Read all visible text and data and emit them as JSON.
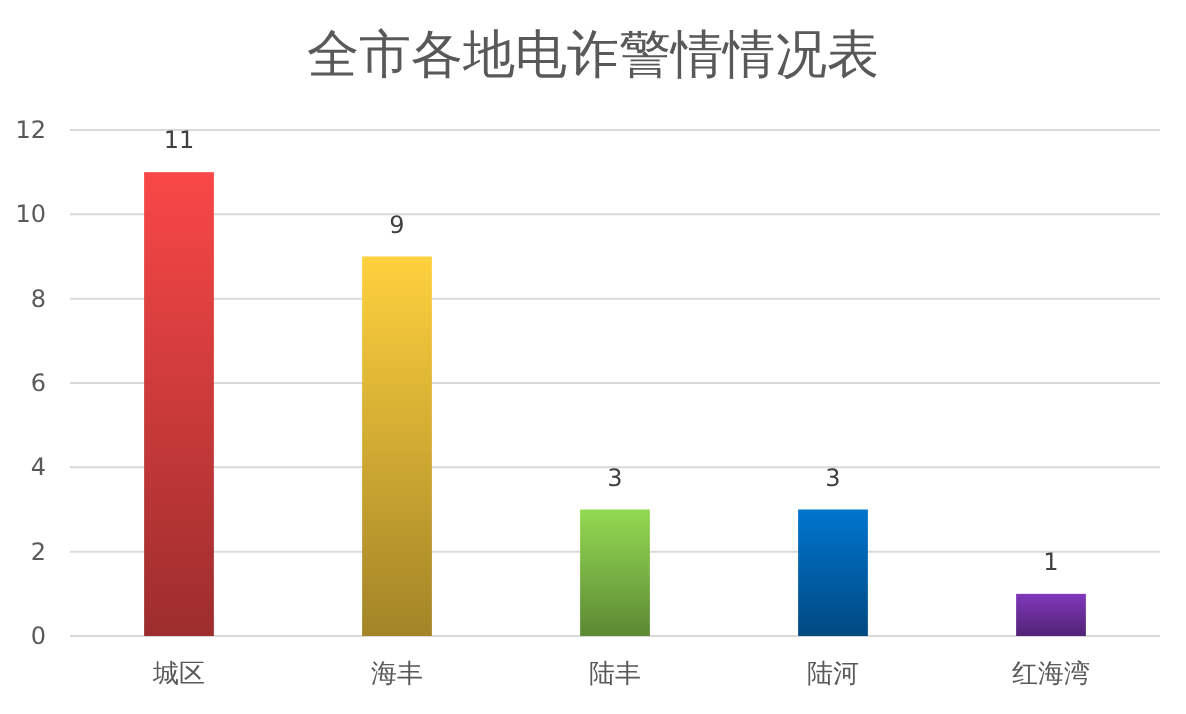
{
  "chart_data": {
    "type": "bar",
    "title": "全市各地电诈警情情况表",
    "categories": [
      "城区",
      "海丰",
      "陆丰",
      "陆河",
      "红海湾"
    ],
    "values": [
      11,
      9,
      3,
      3,
      1
    ],
    "colors": [
      "#e04040",
      "#e8bc38",
      "#84c44a",
      "#0068b8",
      "#7432a8"
    ],
    "ylim": [
      0,
      12
    ],
    "yticks": [
      0,
      2,
      4,
      6,
      8,
      10,
      12
    ],
    "grid": "y",
    "data_labels": true
  }
}
